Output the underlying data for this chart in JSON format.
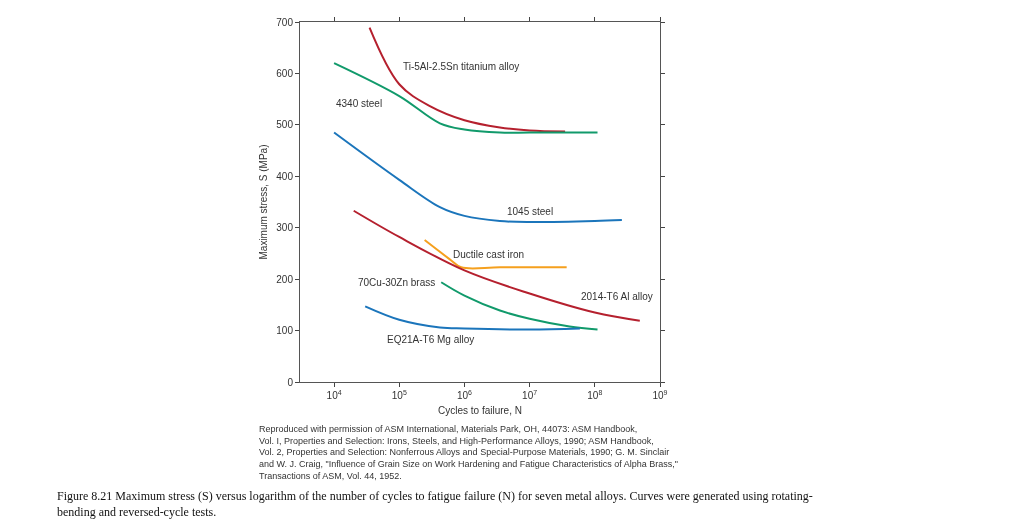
{
  "chart_data": {
    "type": "line",
    "xlabel": "Cycles to failure, N",
    "ylabel": "Maximum stress, S (MPa)",
    "log": "x",
    "xlim": [
      3000,
      1000000000
    ],
    "ylim": [
      0,
      700
    ],
    "xticks": [
      {
        "value": 10000,
        "label": "10$^{4}$"
      },
      {
        "value": 100000,
        "label": "10$^{5}$"
      },
      {
        "value": 1000000,
        "label": "10$^{6}$"
      },
      {
        "value": 10000000,
        "label": "10$^{7}$"
      },
      {
        "value": 100000000,
        "label": "10$^{8}$"
      },
      {
        "value": 1000000000,
        "label": "10$^{9}$"
      }
    ],
    "yticks": [
      0,
      100,
      200,
      300,
      400,
      500,
      600,
      700
    ],
    "legend": false,
    "marker": "none",
    "line_style": "solid",
    "series": [
      {
        "name": "Ti-5Al-2.5Sn titanium alloy",
        "color": "#b5202e",
        "x": [
          35000,
          100000,
          300000,
          1000000,
          3500000,
          10000000,
          35000000
        ],
        "values": [
          689,
          579,
          536,
          509,
          495,
          489,
          487
        ]
      },
      {
        "name": "4340 steel",
        "color": "#119a6b",
        "x": [
          10000,
          100000,
          420000,
          1000000,
          3500000,
          10000000,
          110000000
        ],
        "values": [
          620,
          556,
          503,
          491,
          485,
          485,
          485
        ]
      },
      {
        "name": "1045 steel",
        "color": "#1b75bb",
        "x": [
          10000,
          100000,
          420000,
          1000000,
          3500000,
          10000000,
          100000000,
          260000000
        ],
        "values": [
          485,
          393,
          340,
          323,
          313,
          311,
          313,
          315
        ]
      },
      {
        "name": "Ductile cast iron",
        "color": "#f5a01e",
        "x": [
          245000,
          590000,
          890000,
          3500000,
          37000000
        ],
        "values": [
          276,
          239,
          223,
          223,
          223
        ]
      },
      {
        "name": "2014-T6 Al alloy",
        "color": "#b5202e",
        "x": [
          20000,
          100000,
          1000000,
          10000000,
          100000000,
          490000000
        ],
        "values": [
          333,
          282,
          217,
          172,
          135,
          119
        ]
      },
      {
        "name": "70Cu-30Zn brass",
        "color": "#119a6b",
        "x": [
          440000,
          1000000,
          3500000,
          10000000,
          41000000,
          110000000
        ],
        "values": [
          194,
          168,
          139,
          123,
          108,
          102
        ]
      },
      {
        "name": "EQ21A-T6 Mg alloy",
        "color": "#1b75bb",
        "x": [
          30000,
          100000,
          420000,
          1000000,
          10000000,
          59000000
        ],
        "values": [
          147,
          121,
          106,
          104,
          102,
          104
        ]
      }
    ],
    "annotations": [
      "Reproduced with permission of ASM International, Materials Park, OH, 44073: ASM Handbook,\nVol. I, Properties and Selection: Irons, Steels, and High-Performance Alloys, 1990; ASM Handbook,\nVol. 2, Properties and Selection: Nonferrous Alloys and Special-Purpose Materials, 1990; G. M. Sinclair\nand W. J. Craig, \"Influence of Grain Size on Work Hardening and Fatigue Characteristics of Alpha Brass,\"\nTransactions of ASM, Vol. 44, 1952.",
      "Figure 8.21 Maximum stress (S) versus logarithm of the number of cycles to fatigue failure (N) for seven metal alloys. Curves were generated using rotating-bending and reversed-cycle tests."
    ]
  }
}
